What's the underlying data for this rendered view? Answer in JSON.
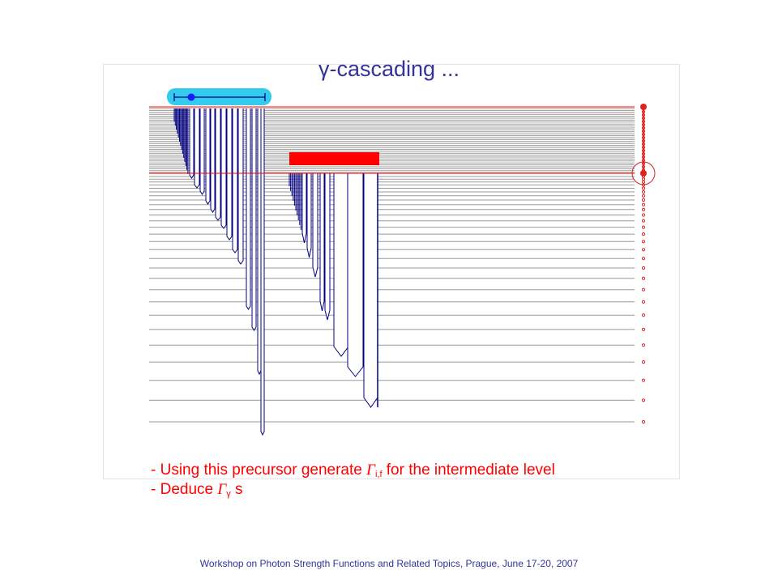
{
  "slide": {
    "title": "γ-cascading ...",
    "footer": "Workshop on Photon Strength Functions and Related Topics, Prague, June 17-20, 2007"
  },
  "notes": [
    {
      "prefix": "- Using this precursor generate ",
      "gamma": "Γ",
      "sub": "i,f",
      "suffix": " for the intermediate level"
    },
    {
      "prefix": "- Deduce ",
      "gamma": "Γ",
      "sub": "γ",
      "suffix": " s"
    }
  ],
  "colors": {
    "level_line": "#999999",
    "transition": "#000080",
    "marker": "#dd2222",
    "initial_bar": "#33ccee",
    "intermediate_bar": "#ff0000",
    "boundary": "#ff0000",
    "title": "#333399",
    "text": "#ff0000"
  }
}
